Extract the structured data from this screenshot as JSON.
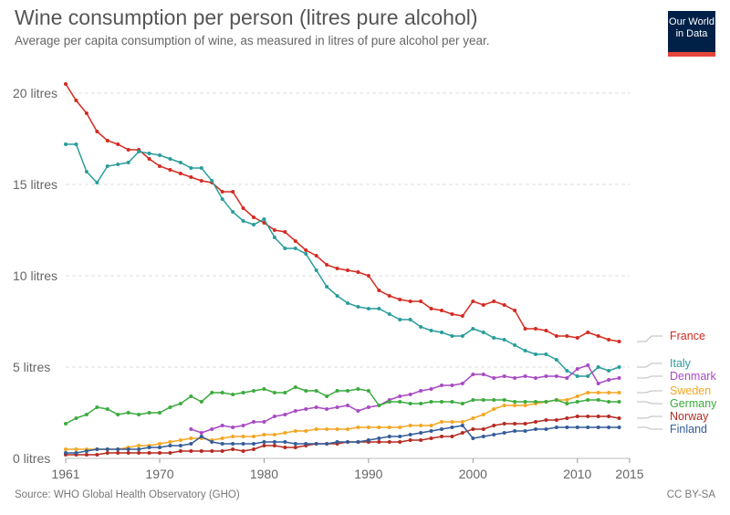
{
  "header": {
    "title": "Wine consumption per person (litres pure alcohol)",
    "subtitle": "Average per capita consumption of wine, as measured in litres of pure alcohol per year."
  },
  "logo": {
    "line1": "Our World",
    "line2": "in Data",
    "bg_color": "#002147",
    "bar_color": "#e5453a"
  },
  "footer": {
    "source": "Source: WHO Global Health Observatory (GHO)",
    "license": "CC BY-SA"
  },
  "chart_data": {
    "type": "line",
    "title": "Wine consumption per person (litres pure alcohol)",
    "xlabel": "",
    "ylabel": "",
    "xlim": [
      1961,
      2015
    ],
    "ylim": [
      0,
      21
    ],
    "x_ticks": [
      1961,
      1970,
      1980,
      1990,
      2000,
      2010,
      2015
    ],
    "y_ticks": [
      {
        "value": 0,
        "label": "0 litres"
      },
      {
        "value": 5,
        "label": "5 litres"
      },
      {
        "value": 10,
        "label": "10 litres"
      },
      {
        "value": 15,
        "label": "15 litres"
      },
      {
        "value": 20,
        "label": "20 litres"
      }
    ],
    "grid": "horizontal-dashed",
    "legend": "right",
    "x": [
      1961,
      1962,
      1963,
      1964,
      1965,
      1966,
      1967,
      1968,
      1969,
      1970,
      1971,
      1972,
      1973,
      1974,
      1975,
      1976,
      1977,
      1978,
      1979,
      1980,
      1981,
      1982,
      1983,
      1984,
      1985,
      1986,
      1987,
      1988,
      1989,
      1990,
      1991,
      1992,
      1993,
      1994,
      1995,
      1996,
      1997,
      1998,
      1999,
      2000,
      2001,
      2002,
      2003,
      2004,
      2005,
      2006,
      2007,
      2008,
      2009,
      2010,
      2011,
      2012,
      2013,
      2014
    ],
    "series": [
      {
        "name": "France",
        "color": "#d42b21",
        "values": [
          20.5,
          19.6,
          18.9,
          17.9,
          17.4,
          17.2,
          16.9,
          16.9,
          16.4,
          16.0,
          15.8,
          15.6,
          15.4,
          15.2,
          15.1,
          14.6,
          14.6,
          13.7,
          13.2,
          12.9,
          12.5,
          12.4,
          11.9,
          11.4,
          11.1,
          10.6,
          10.4,
          10.3,
          10.2,
          10.0,
          9.2,
          8.9,
          8.7,
          8.6,
          8.6,
          8.2,
          8.1,
          7.9,
          7.8,
          8.6,
          8.4,
          8.6,
          8.4,
          8.1,
          7.1,
          7.1,
          7.0,
          6.7,
          6.7,
          6.6,
          6.9,
          6.7,
          6.5,
          6.4
        ]
      },
      {
        "name": "Italy",
        "color": "#2a9d9b",
        "values": [
          17.2,
          17.2,
          15.7,
          15.1,
          16.0,
          16.1,
          16.2,
          16.8,
          16.7,
          16.6,
          16.4,
          16.2,
          15.9,
          15.9,
          15.2,
          14.2,
          13.5,
          13.0,
          12.8,
          13.1,
          12.1,
          11.5,
          11.5,
          11.2,
          10.3,
          9.4,
          8.9,
          8.5,
          8.3,
          8.2,
          8.2,
          7.9,
          7.6,
          7.6,
          7.2,
          7.0,
          6.9,
          6.7,
          6.7,
          7.1,
          6.9,
          6.6,
          6.5,
          6.2,
          5.9,
          5.7,
          5.7,
          5.4,
          4.8,
          4.5,
          4.5,
          5.0,
          4.8,
          5.0
        ]
      },
      {
        "name": "Denmark",
        "color": "#a94ac4",
        "values": [
          null,
          null,
          null,
          null,
          null,
          null,
          null,
          null,
          null,
          null,
          null,
          null,
          1.6,
          1.4,
          1.6,
          1.8,
          1.7,
          1.8,
          2.0,
          2.0,
          2.3,
          2.4,
          2.6,
          2.7,
          2.8,
          2.7,
          2.8,
          2.9,
          2.6,
          2.8,
          2.9,
          3.2,
          3.4,
          3.5,
          3.7,
          3.8,
          4.0,
          4.0,
          4.1,
          4.6,
          4.6,
          4.4,
          4.5,
          4.4,
          4.5,
          4.4,
          4.5,
          4.5,
          4.4,
          4.9,
          5.1,
          4.1,
          4.3,
          4.4
        ]
      },
      {
        "name": "Sweden",
        "color": "#f5a623",
        "values": [
          0.5,
          0.5,
          0.5,
          0.5,
          0.5,
          0.5,
          0.6,
          0.7,
          0.7,
          0.8,
          0.9,
          1.0,
          1.1,
          1.1,
          1.0,
          1.1,
          1.2,
          1.2,
          1.2,
          1.3,
          1.3,
          1.4,
          1.5,
          1.5,
          1.6,
          1.6,
          1.6,
          1.6,
          1.7,
          1.7,
          1.7,
          1.7,
          1.7,
          1.8,
          1.8,
          1.8,
          2.0,
          2.0,
          2.0,
          2.2,
          2.4,
          2.7,
          2.9,
          2.9,
          2.9,
          3.0,
          3.1,
          3.2,
          3.2,
          3.4,
          3.6,
          3.6,
          3.6,
          3.6
        ]
      },
      {
        "name": "Germany",
        "color": "#3bab3e",
        "values": [
          1.9,
          2.2,
          2.4,
          2.8,
          2.7,
          2.4,
          2.5,
          2.4,
          2.5,
          2.5,
          2.8,
          3.0,
          3.4,
          3.1,
          3.6,
          3.6,
          3.5,
          3.6,
          3.7,
          3.8,
          3.6,
          3.6,
          3.9,
          3.7,
          3.7,
          3.4,
          3.7,
          3.7,
          3.8,
          3.7,
          2.9,
          3.1,
          3.1,
          3.0,
          3.0,
          3.1,
          3.1,
          3.1,
          3.0,
          3.2,
          3.2,
          3.2,
          3.2,
          3.1,
          3.1,
          3.1,
          3.1,
          3.2,
          3.0,
          3.1,
          3.2,
          3.2,
          3.1,
          3.1
        ]
      },
      {
        "name": "Norway",
        "color": "#b62a22",
        "values": [
          0.2,
          0.2,
          0.2,
          0.2,
          0.3,
          0.3,
          0.3,
          0.3,
          0.3,
          0.3,
          0.3,
          0.4,
          0.4,
          0.4,
          0.4,
          0.4,
          0.5,
          0.4,
          0.5,
          0.7,
          0.7,
          0.6,
          0.6,
          0.7,
          0.8,
          0.8,
          0.8,
          0.9,
          0.9,
          0.9,
          0.9,
          0.9,
          0.9,
          1.0,
          1.0,
          1.1,
          1.2,
          1.2,
          1.4,
          1.6,
          1.6,
          1.8,
          1.9,
          1.9,
          1.9,
          2.0,
          2.1,
          2.1,
          2.2,
          2.3,
          2.3,
          2.3,
          2.3,
          2.2
        ]
      },
      {
        "name": "Finland",
        "color": "#335c99",
        "values": [
          0.3,
          0.3,
          0.4,
          0.5,
          0.5,
          0.5,
          0.5,
          0.5,
          0.6,
          0.6,
          0.7,
          0.7,
          0.8,
          1.2,
          0.9,
          0.8,
          0.8,
          0.8,
          0.8,
          0.9,
          0.9,
          0.9,
          0.8,
          0.8,
          0.8,
          0.8,
          0.9,
          0.9,
          0.9,
          1.0,
          1.1,
          1.2,
          1.2,
          1.3,
          1.4,
          1.5,
          1.6,
          1.7,
          1.8,
          1.1,
          1.2,
          1.3,
          1.4,
          1.5,
          1.5,
          1.6,
          1.6,
          1.7,
          1.7,
          1.7,
          1.7,
          1.7,
          1.7,
          1.7
        ]
      }
    ]
  }
}
